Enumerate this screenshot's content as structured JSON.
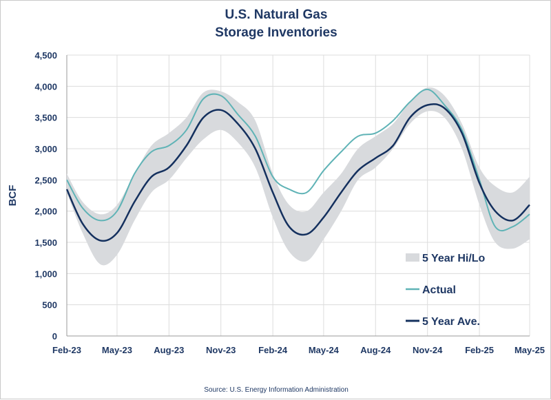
{
  "title_line1": "U.S. Natural Gas",
  "title_line2": "Storage Inventories",
  "source": "Source: U.S. Energy Information Administration",
  "colors": {
    "band": "#d8dadd",
    "actual": "#5fb3b6",
    "average": "#14305e",
    "grid": "#dcdcdc",
    "text": "#1f3864"
  },
  "chart_data": {
    "type": "line",
    "ylabel": "BCF",
    "ylim": [
      0,
      4500
    ],
    "yticks": [
      "0",
      "500",
      "1,000",
      "1,500",
      "2,000",
      "2,500",
      "3,000",
      "3,500",
      "4,000",
      "4,500"
    ],
    "ytick_values": [
      0,
      500,
      1000,
      1500,
      2000,
      2500,
      3000,
      3500,
      4000,
      4500
    ],
    "xticks": [
      "Feb-23",
      "May-23",
      "Aug-23",
      "Nov-23",
      "Feb-24",
      "May-24",
      "Aug-24",
      "Nov-24",
      "Feb-25",
      "May-25"
    ],
    "xlim": [
      "2023-02-01",
      "2025-05-01"
    ],
    "grid": true,
    "legend_position": "bottom-right",
    "x": [
      "2023-02-01",
      "2023-03-01",
      "2023-04-01",
      "2023-05-01",
      "2023-06-01",
      "2023-07-01",
      "2023-08-01",
      "2023-09-01",
      "2023-10-01",
      "2023-11-01",
      "2023-12-01",
      "2024-01-01",
      "2024-02-01",
      "2024-03-01",
      "2024-04-01",
      "2024-05-01",
      "2024-06-01",
      "2024-07-01",
      "2024-08-01",
      "2024-09-01",
      "2024-10-01",
      "2024-11-01",
      "2024-12-01",
      "2025-01-01",
      "2025-02-01",
      "2025-03-01",
      "2025-04-01",
      "2025-05-01"
    ],
    "series": [
      {
        "name": "5 Year Hi/Lo",
        "kind": "band",
        "high": [
          2600,
          2150,
          1950,
          2100,
          2600,
          3050,
          3250,
          3500,
          3900,
          3920,
          3750,
          3450,
          2600,
          2100,
          2000,
          2300,
          2600,
          3000,
          3200,
          3400,
          3750,
          3980,
          3850,
          3400,
          2700,
          2400,
          2300,
          2550
        ],
        "low": [
          2300,
          1650,
          1150,
          1300,
          1850,
          2300,
          2500,
          2850,
          3150,
          3300,
          3100,
          2700,
          1900,
          1350,
          1200,
          1550,
          2000,
          2500,
          2700,
          3000,
          3400,
          3600,
          3500,
          3000,
          2100,
          1500,
          1400,
          1550
        ]
      },
      {
        "name": "Actual",
        "kind": "line",
        "values": [
          2500,
          2050,
          1850,
          2000,
          2600,
          2950,
          3050,
          3300,
          3800,
          3850,
          3550,
          3200,
          2550,
          2350,
          2300,
          2650,
          2950,
          3200,
          3250,
          3450,
          3750,
          3950,
          3700,
          3300,
          2500,
          1750,
          1750,
          1950
        ]
      },
      {
        "name": "5 Year Ave.",
        "kind": "line",
        "values": [
          2350,
          1800,
          1530,
          1650,
          2150,
          2550,
          2700,
          3050,
          3500,
          3620,
          3400,
          3000,
          2300,
          1750,
          1630,
          1900,
          2300,
          2650,
          2850,
          3050,
          3500,
          3700,
          3650,
          3250,
          2450,
          2000,
          1850,
          2100
        ]
      }
    ]
  }
}
